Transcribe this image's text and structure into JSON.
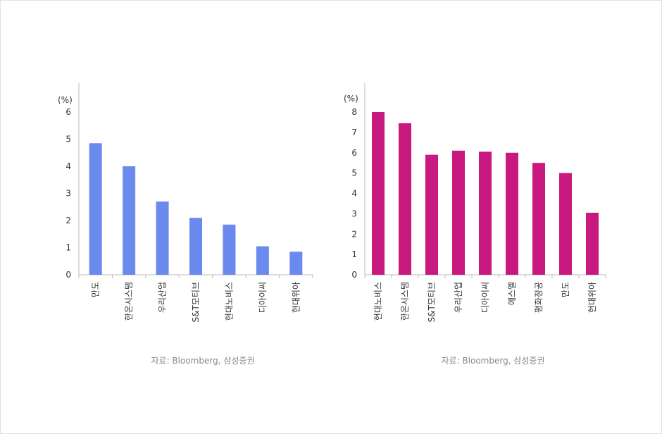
{
  "chart_data": [
    {
      "type": "bar",
      "unit_label": "(%)",
      "categories": [
        "만도",
        "한온시스템",
        "우리산업",
        "S&T모티브",
        "현대노비스",
        "디아이씨",
        "현대위아"
      ],
      "values": [
        4.85,
        4.0,
        2.7,
        2.1,
        1.85,
        1.05,
        0.85
      ],
      "yticks": [
        "0",
        "1",
        "2",
        "3",
        "4",
        "5",
        "6"
      ],
      "ylim": [
        0,
        6
      ],
      "color": "#6b8aed",
      "source": "자료: Bloomberg, 삼성증권"
    },
    {
      "type": "bar",
      "unit_label": "(%)",
      "categories": [
        "현대노비스",
        "한온시스템",
        "S&T모티브",
        "우리산업",
        "디아이씨",
        "에스엘",
        "평화정공",
        "만도",
        "현대위아"
      ],
      "values": [
        8.0,
        7.45,
        5.9,
        6.1,
        6.05,
        6.0,
        5.5,
        5.0,
        3.05
      ],
      "yticks": [
        "0",
        "1",
        "2",
        "3",
        "4",
        "5",
        "6",
        "7",
        "8"
      ],
      "ylim": [
        0,
        8
      ],
      "color": "#c8197f",
      "source": "자료: Bloomberg, 삼성증권"
    }
  ]
}
